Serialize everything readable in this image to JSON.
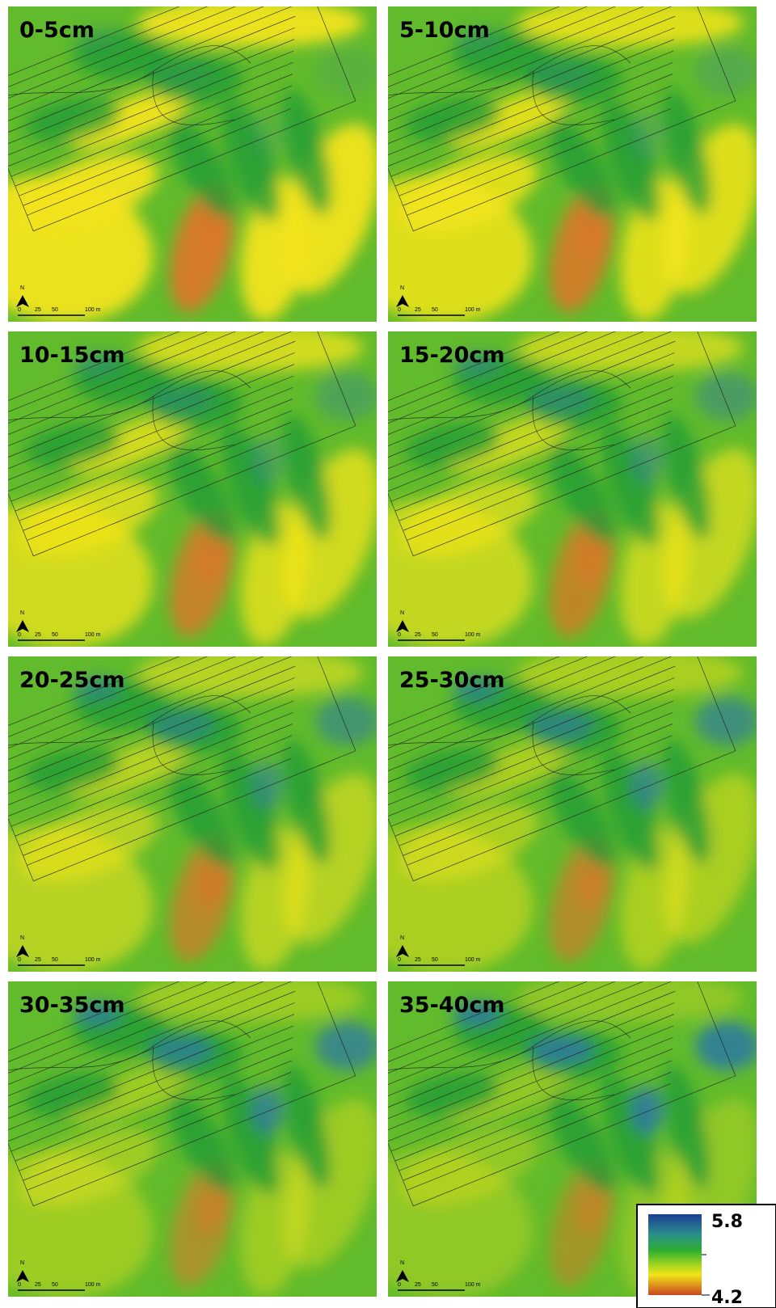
{
  "panels": [
    {
      "label": "0-5cm"
    },
    {
      "label": "5-10cm"
    },
    {
      "label": "10-15cm"
    },
    {
      "label": "15-20cm"
    },
    {
      "label": "20-25cm"
    },
    {
      "label": "25-30cm"
    },
    {
      "label": "30-35cm"
    },
    {
      "label": "35-40cm"
    }
  ],
  "north": "N",
  "scale_bar": {
    "labels": [
      "0",
      "25",
      "50",
      "100 m"
    ]
  },
  "legend": {
    "max": 5.8,
    "min": 4.2
  }
}
